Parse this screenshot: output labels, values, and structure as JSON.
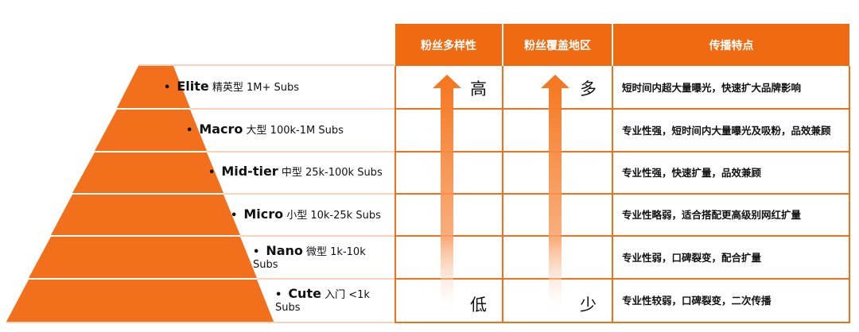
{
  "headers": [
    "粉丝多样性",
    "粉丝覆盖地区",
    "传播特点"
  ],
  "tiers": [
    {
      "name": "Elite",
      "desc": "精英型 1M+ Subs",
      "feature": "短时间内超大量曝光，快速扩大品牌影响"
    },
    {
      "name": "Macro",
      "desc": "大型 100k-1M Subs",
      "feature": "专业性强，短时间内大量曝光及吸粉，品效兼顾"
    },
    {
      "name": "Mid-tier",
      "desc": "中型 25k-100k Subs",
      "feature": "专业性强，快速扩量，品效兼顾"
    },
    {
      "name": "Micro",
      "desc": "小型 10k-25k Subs",
      "feature": "专业性略弱，适合搭配更高级别网红扩量"
    },
    {
      "name": "Nano",
      "desc": "微型 1k-10k Subs",
      "feature": "专业性弱，口碑裂变，配合扩量"
    },
    {
      "name": "Cute",
      "desc": "入门 <1k Subs",
      "feature": "专业性较弱，口碑裂变，二次传播"
    }
  ],
  "diversity": {
    "high": "高",
    "low": "低"
  },
  "coverage": {
    "high": "多",
    "low": "少"
  },
  "bullet": "•",
  "colors": {
    "accent": "#f06a12",
    "pyramid": "#f26f1c",
    "arrow": "#f5751c"
  }
}
